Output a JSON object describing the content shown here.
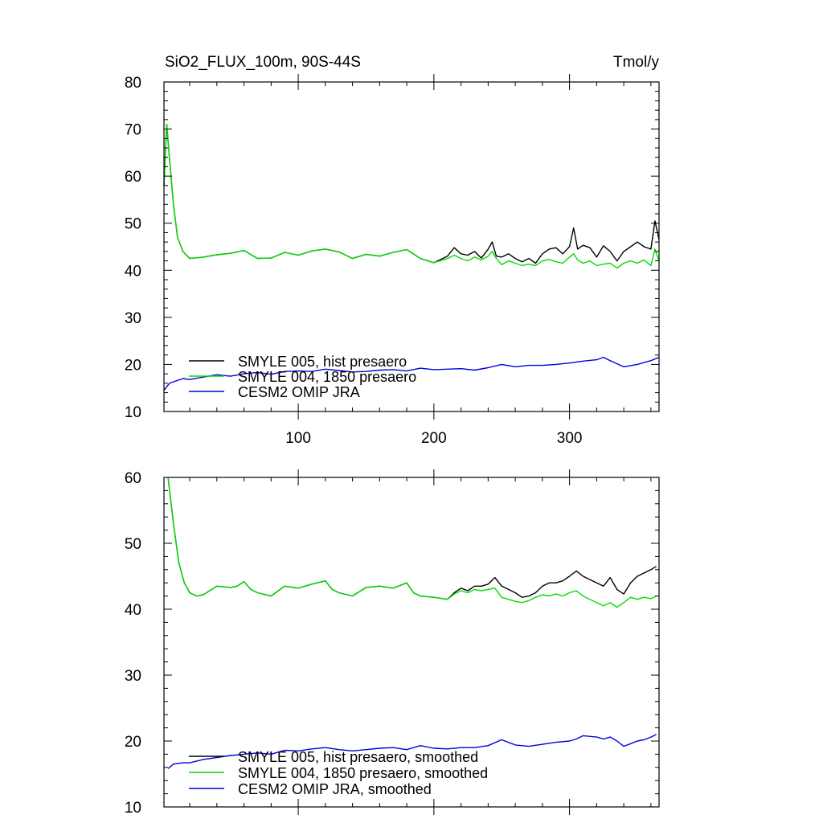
{
  "figure": {
    "title_left": "SiO2_FLUX_100m, 90S-44S",
    "title_right": "Tmol/y"
  },
  "chart_data": [
    {
      "type": "line",
      "title": "SiO2_FLUX_100m, 90S-44S",
      "units": "Tmol/y",
      "xlim": [
        1,
        366
      ],
      "ylim": [
        10,
        80
      ],
      "grid": false,
      "legend_position": "bottom-left",
      "x_ticks": [
        100,
        200,
        300
      ],
      "y_ticks": [
        10,
        20,
        30,
        40,
        50,
        60,
        70,
        80
      ],
      "series": [
        {
          "name": "SMYLE 005, hist presaero",
          "color": "#000000",
          "x": [
            1,
            3,
            5,
            8,
            11,
            15,
            20,
            30,
            40,
            50,
            60,
            70,
            80,
            90,
            100,
            110,
            120,
            130,
            140,
            150,
            160,
            170,
            180,
            190,
            200,
            210,
            215,
            220,
            225,
            230,
            235,
            240,
            243,
            246,
            250,
            255,
            260,
            265,
            270,
            275,
            280,
            285,
            290,
            295,
            300,
            303,
            306,
            310,
            315,
            320,
            325,
            330,
            335,
            340,
            345,
            350,
            355,
            360,
            363,
            366
          ],
          "values": [
            58,
            71,
            64,
            54,
            47,
            44,
            42.5,
            42.8,
            43.3,
            43.6,
            44.2,
            42.5,
            42.6,
            43.8,
            43.2,
            44.1,
            44.5,
            43.9,
            42.5,
            43.4,
            43.0,
            43.8,
            44.4,
            42.5,
            41.6,
            43.0,
            44.8,
            43.5,
            43.2,
            44.0,
            42.6,
            44.5,
            46.0,
            43.0,
            42.8,
            43.5,
            42.5,
            41.8,
            42.5,
            41.5,
            43.5,
            44.5,
            44.8,
            43.5,
            45.0,
            49.0,
            44.5,
            45.3,
            44.8,
            42.8,
            45.2,
            44.0,
            42.0,
            44.0,
            45.0,
            46.0,
            45.0,
            44.5,
            50.5,
            46.5
          ]
        },
        {
          "name": "SMYLE 004, 1850 presaero",
          "color": "#00dd00",
          "x": [
            1,
            3,
            5,
            8,
            11,
            15,
            20,
            30,
            40,
            50,
            60,
            70,
            80,
            90,
            100,
            110,
            120,
            130,
            140,
            150,
            160,
            170,
            180,
            190,
            200,
            210,
            215,
            220,
            225,
            230,
            235,
            240,
            243,
            246,
            250,
            255,
            260,
            265,
            270,
            275,
            280,
            285,
            290,
            295,
            300,
            303,
            306,
            310,
            315,
            320,
            325,
            330,
            335,
            340,
            345,
            350,
            355,
            360,
            363,
            366
          ],
          "values": [
            58,
            71,
            64,
            54,
            47,
            44,
            42.5,
            42.8,
            43.3,
            43.6,
            44.2,
            42.5,
            42.6,
            43.8,
            43.2,
            44.1,
            44.5,
            43.9,
            42.5,
            43.4,
            43.0,
            43.8,
            44.4,
            42.5,
            41.6,
            42.5,
            43.2,
            42.5,
            42.0,
            42.8,
            42.2,
            43.0,
            44.0,
            42.5,
            41.2,
            42.0,
            41.5,
            41.0,
            41.3,
            41.0,
            42.0,
            42.3,
            41.8,
            41.5,
            42.8,
            43.5,
            42.2,
            41.5,
            42.0,
            41.0,
            41.3,
            41.5,
            40.5,
            41.5,
            42.0,
            41.5,
            42.2,
            41.0,
            44.5,
            42.0
          ]
        },
        {
          "name": "CESM2 OMIP JRA",
          "color": "#0000dd",
          "x": [
            1,
            5,
            10,
            15,
            20,
            30,
            40,
            50,
            60,
            70,
            80,
            90,
            100,
            110,
            120,
            130,
            140,
            150,
            160,
            170,
            180,
            190,
            200,
            210,
            220,
            230,
            240,
            250,
            260,
            270,
            280,
            290,
            300,
            310,
            320,
            325,
            330,
            340,
            350,
            360,
            366
          ],
          "values": [
            14.5,
            16.0,
            16.5,
            17.0,
            16.8,
            17.3,
            17.8,
            17.5,
            18.0,
            18.3,
            17.9,
            18.5,
            18.6,
            18.5,
            19.0,
            18.7,
            18.4,
            18.5,
            18.8,
            18.9,
            18.6,
            19.2,
            18.9,
            19.0,
            19.1,
            18.8,
            19.3,
            20.0,
            19.5,
            19.8,
            19.8,
            20.0,
            20.3,
            20.7,
            21.0,
            21.5,
            20.8,
            19.5,
            20.0,
            20.8,
            21.5
          ]
        }
      ]
    },
    {
      "type": "line",
      "xlim": [
        1,
        366
      ],
      "ylim": [
        10,
        60
      ],
      "grid": false,
      "legend_position": "bottom-left",
      "x_ticks": [
        100,
        200,
        300
      ],
      "y_ticks": [
        10,
        20,
        30,
        40,
        50,
        60
      ],
      "series": [
        {
          "name": "SMYLE 005, hist presaero, smoothed",
          "color": "#000000",
          "x": [
            4,
            8,
            12,
            16,
            20,
            25,
            30,
            40,
            50,
            55,
            60,
            65,
            70,
            80,
            90,
            100,
            110,
            120,
            125,
            130,
            140,
            150,
            160,
            170,
            180,
            185,
            190,
            200,
            210,
            215,
            220,
            225,
            230,
            235,
            240,
            245,
            250,
            255,
            260,
            265,
            270,
            275,
            280,
            285,
            290,
            295,
            300,
            305,
            310,
            315,
            320,
            325,
            330,
            335,
            340,
            345,
            350,
            355,
            360,
            364
          ],
          "values": [
            60,
            53,
            47,
            44,
            42.5,
            42.0,
            42.2,
            43.5,
            43.3,
            43.5,
            44.2,
            43.0,
            42.5,
            42.0,
            43.5,
            43.2,
            43.8,
            44.3,
            43.0,
            42.5,
            42.0,
            43.3,
            43.5,
            43.2,
            44.0,
            42.5,
            42.0,
            41.8,
            41.5,
            42.5,
            43.2,
            42.8,
            43.5,
            43.5,
            43.8,
            44.8,
            43.5,
            43.0,
            42.5,
            41.8,
            42.0,
            42.5,
            43.5,
            44.0,
            44.0,
            44.3,
            45.0,
            45.8,
            45.0,
            44.5,
            44.0,
            43.5,
            44.8,
            43.0,
            42.3,
            44.0,
            45.0,
            45.5,
            46.0,
            46.5
          ]
        },
        {
          "name": "SMYLE 004, 1850 presaero, smoothed",
          "color": "#00dd00",
          "x": [
            4,
            8,
            12,
            16,
            20,
            25,
            30,
            40,
            50,
            55,
            60,
            65,
            70,
            80,
            90,
            100,
            110,
            120,
            125,
            130,
            140,
            150,
            160,
            170,
            180,
            185,
            190,
            200,
            210,
            215,
            220,
            225,
            230,
            235,
            240,
            245,
            250,
            255,
            260,
            265,
            270,
            275,
            280,
            285,
            290,
            295,
            300,
            305,
            310,
            315,
            320,
            325,
            330,
            335,
            340,
            345,
            350,
            355,
            360,
            364
          ],
          "values": [
            60,
            53,
            47,
            44,
            42.5,
            42.0,
            42.2,
            43.5,
            43.3,
            43.5,
            44.2,
            43.0,
            42.5,
            42.0,
            43.5,
            43.2,
            43.8,
            44.3,
            43.0,
            42.5,
            42.0,
            43.3,
            43.5,
            43.2,
            44.0,
            42.5,
            42.0,
            41.8,
            41.5,
            42.3,
            42.8,
            42.5,
            43.0,
            42.8,
            43.0,
            43.2,
            41.8,
            41.5,
            41.2,
            41.0,
            41.3,
            41.8,
            42.2,
            42.0,
            42.3,
            42.0,
            42.5,
            42.8,
            42.0,
            41.5,
            41.0,
            40.5,
            41.0,
            40.3,
            41.0,
            41.8,
            41.5,
            41.8,
            41.6,
            42.0
          ]
        },
        {
          "name": "CESM2 OMIP JRA, smoothed",
          "color": "#0000dd",
          "x": [
            4,
            8,
            15,
            20,
            30,
            40,
            50,
            60,
            70,
            80,
            90,
            100,
            110,
            120,
            130,
            140,
            150,
            160,
            170,
            180,
            190,
            200,
            210,
            220,
            230,
            240,
            250,
            260,
            270,
            280,
            290,
            300,
            305,
            310,
            320,
            325,
            330,
            335,
            340,
            345,
            350,
            355,
            360,
            364
          ],
          "values": [
            15.8,
            16.5,
            16.7,
            16.7,
            17.2,
            17.5,
            17.8,
            18.0,
            18.2,
            18.0,
            18.6,
            18.5,
            18.8,
            19.0,
            18.7,
            18.5,
            18.7,
            18.9,
            19.0,
            18.7,
            19.3,
            18.9,
            18.8,
            19.0,
            19.0,
            19.3,
            20.2,
            19.4,
            19.2,
            19.5,
            19.8,
            20.0,
            20.3,
            20.8,
            20.6,
            20.3,
            20.6,
            20.0,
            19.2,
            19.6,
            20.0,
            20.2,
            20.6,
            21.0
          ]
        }
      ]
    }
  ]
}
